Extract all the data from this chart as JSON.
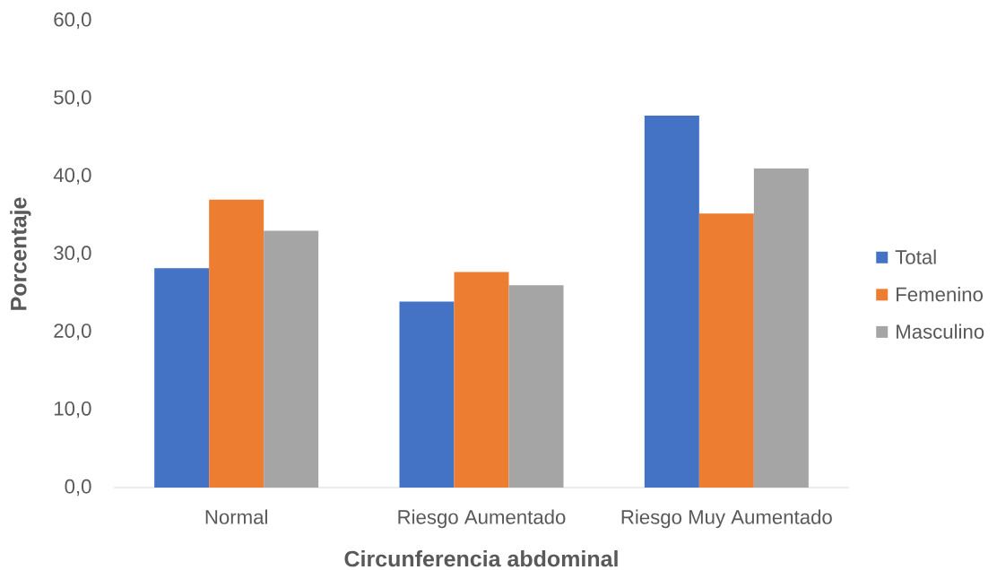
{
  "chart_data": {
    "type": "bar",
    "xlabel": "Circunferencia abdominal",
    "ylabel": "Porcentaje",
    "categories": [
      "Normal",
      "Riesgo Aumentado",
      "Riesgo Muy Aumentado"
    ],
    "series": [
      {
        "name": "Total",
        "color": "#4472c4",
        "values": [
          28.2,
          23.9,
          47.8
        ]
      },
      {
        "name": "Femenino",
        "color": "#ed7d31",
        "values": [
          37.0,
          27.7,
          35.2
        ]
      },
      {
        "name": "Masculino",
        "color": "#a5a5a5",
        "values": [
          33.0,
          26.0,
          41.0
        ]
      }
    ],
    "ylim": [
      0,
      60
    ],
    "yticks": [
      {
        "value": 0,
        "label": "0,0"
      },
      {
        "value": 10,
        "label": "10,0"
      },
      {
        "value": 20,
        "label": "20,0"
      },
      {
        "value": 30,
        "label": "30,0"
      },
      {
        "value": 40,
        "label": "40,0"
      },
      {
        "value": 50,
        "label": "50,0"
      },
      {
        "value": 60,
        "label": "60,0"
      }
    ],
    "grid": false,
    "legend": "right"
  }
}
